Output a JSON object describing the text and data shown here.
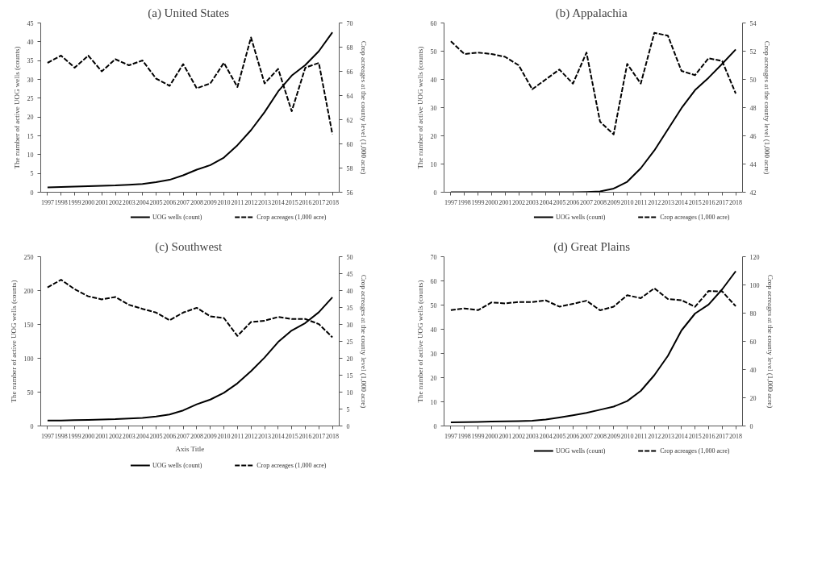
{
  "chart_data": [
    {
      "type": "line",
      "title": "(a)  United States",
      "categories": [
        "1997",
        "1998",
        "1999",
        "2000",
        "2001",
        "2002",
        "2003",
        "2004",
        "2005",
        "2006",
        "2007",
        "2008",
        "2009",
        "2010",
        "2011",
        "2012",
        "2013",
        "2014",
        "2015",
        "2016",
        "2017",
        "2018"
      ],
      "ylabel": "The number of active UOG wells (counts)",
      "y2label": "Crop acreages at the county level (1,000 acre)",
      "ylim": [
        0,
        45
      ],
      "yticks": [
        0,
        5,
        10,
        15,
        20,
        25,
        30,
        35,
        40,
        45
      ],
      "y2lim": [
        56,
        70
      ],
      "y2ticks": [
        56,
        58,
        60,
        62,
        64,
        66,
        68,
        70
      ],
      "legend": "bottom",
      "series": [
        {
          "name": "UOG wells (count)",
          "color": "#000000",
          "line_style": "solid",
          "values": [
            1.3,
            1.4,
            1.5,
            1.6,
            1.7,
            1.8,
            2.0,
            2.2,
            2.7,
            3.3,
            4.5,
            6.0,
            7.2,
            9.2,
            12.5,
            16.5,
            21.3,
            26.8,
            31.0,
            33.8,
            37.5,
            42.5
          ]
        },
        {
          "name": "Crop acreages (1,000 acre)",
          "color": "#000000",
          "line_style": "dashed",
          "axis": "y2",
          "values": [
            66.7,
            67.3,
            66.3,
            67.3,
            66.0,
            67.0,
            66.5,
            66.9,
            65.4,
            64.8,
            66.6,
            64.6,
            65.0,
            66.7,
            64.7,
            68.8,
            65.0,
            66.2,
            62.7,
            66.3,
            66.7,
            60.8
          ]
        }
      ]
    },
    {
      "type": "line",
      "title": "(b)  Appalachia",
      "categories": [
        "1997",
        "1998",
        "1999",
        "2000",
        "2001",
        "2002",
        "2003",
        "2004",
        "2005",
        "2006",
        "2007",
        "2008",
        "2009",
        "2010",
        "2011",
        "2012",
        "2013",
        "2014",
        "2015",
        "2016",
        "2017",
        "2018"
      ],
      "ylabel": "The number of active UOG wells (counts)",
      "y2label": "Crop acreages at the county level (1,000 acre)",
      "ylim": [
        0,
        60
      ],
      "yticks": [
        0,
        10,
        20,
        30,
        40,
        50,
        60
      ],
      "y2lim": [
        42,
        54
      ],
      "y2ticks": [
        42,
        44,
        46,
        48,
        50,
        52,
        54
      ],
      "legend": "bottom",
      "series": [
        {
          "name": "UOG wells (count)",
          "color": "#000000",
          "line_style": "solid",
          "values": [
            0,
            0,
            0,
            0,
            0,
            0,
            0,
            0,
            0,
            0,
            0.1,
            0.3,
            1.3,
            3.7,
            8.5,
            14.8,
            22.3,
            29.8,
            36.2,
            40.6,
            45.5,
            50.6
          ]
        },
        {
          "name": "Crop acreages (1,000 acre)",
          "color": "#000000",
          "line_style": "dashed",
          "axis": "y2",
          "values": [
            52.7,
            51.8,
            51.9,
            51.8,
            51.6,
            51.0,
            49.3,
            50.0,
            50.7,
            49.7,
            51.9,
            47.0,
            46.1,
            51.1,
            49.7,
            53.3,
            53.1,
            50.6,
            50.3,
            51.5,
            51.3,
            49.0
          ]
        }
      ]
    },
    {
      "type": "line",
      "title": "(c)  Southwest",
      "categories": [
        "1997",
        "1998",
        "1999",
        "2000",
        "2001",
        "2002",
        "2003",
        "2004",
        "2005",
        "2006",
        "2007",
        "2008",
        "2009",
        "2010",
        "2011",
        "2012",
        "2013",
        "2014",
        "2015",
        "2016",
        "2017",
        "2018"
      ],
      "xlabel": "Axis Title",
      "ylabel": "The number of active UOG wells (counts)",
      "y2label": "Crop acreages at the county level (1,000 acre)",
      "ylim": [
        0,
        250
      ],
      "yticks": [
        0,
        50,
        100,
        150,
        200,
        250
      ],
      "y2lim": [
        0,
        50
      ],
      "y2ticks": [
        0,
        5,
        10,
        15,
        20,
        25,
        30,
        35,
        40,
        45,
        50
      ],
      "legend": "bottom",
      "series": [
        {
          "name": "UOG wells (count)",
          "color": "#000000",
          "line_style": "solid",
          "values": [
            8,
            8,
            8.5,
            9,
            9.5,
            10,
            11,
            12,
            14,
            17,
            23,
            32,
            39,
            49,
            63,
            81,
            101,
            124,
            141,
            152,
            168,
            190
          ]
        },
        {
          "name": "Crop acreages (1,000 acre)",
          "color": "#000000",
          "line_style": "dashed",
          "axis": "y2",
          "values": [
            40.9,
            43.2,
            40.4,
            38.3,
            37.4,
            38.1,
            35.8,
            34.6,
            33.5,
            31.2,
            33.5,
            34.9,
            32.4,
            31.9,
            26.6,
            30.7,
            31.1,
            32.2,
            31.6,
            31.6,
            30.1,
            26.2
          ]
        }
      ]
    },
    {
      "type": "line",
      "title": "(d)  Great Plains",
      "categories": [
        "1997",
        "1998",
        "1999",
        "2000",
        "2001",
        "2002",
        "2003",
        "2004",
        "2005",
        "2006",
        "2007",
        "2008",
        "2009",
        "2010",
        "2011",
        "2012",
        "2013",
        "2014",
        "2015",
        "2016",
        "2017",
        "2018"
      ],
      "ylabel": "The number of active UOG wells (counts)",
      "y2label": "Crop acreages at the county level (1,000 acre)",
      "ylim": [
        0,
        70
      ],
      "yticks": [
        0,
        10,
        20,
        30,
        40,
        50,
        60,
        70
      ],
      "y2lim": [
        0,
        120
      ],
      "y2ticks": [
        0,
        20,
        40,
        60,
        80,
        100,
        120
      ],
      "legend": "bottom",
      "series": [
        {
          "name": "UOG wells (count)",
          "color": "#000000",
          "line_style": "solid",
          "values": [
            1.5,
            1.6,
            1.7,
            1.8,
            1.9,
            2.0,
            2.2,
            2.7,
            3.5,
            4.4,
            5.4,
            6.7,
            8.0,
            10.3,
            14.5,
            21.0,
            29,
            39.5,
            46.5,
            50.2,
            56.5,
            64
          ]
        },
        {
          "name": "Crop acreages (1,000 acre)",
          "color": "#000000",
          "line_style": "dashed",
          "axis": "y2",
          "values": [
            82.2,
            83.3,
            82.1,
            87.6,
            86.9,
            87.9,
            87.8,
            89.0,
            84.6,
            86.6,
            88.8,
            82.0,
            84.6,
            92.7,
            90.6,
            97.6,
            90.0,
            89.2,
            84.5,
            95.7,
            95.4,
            84.9
          ]
        }
      ]
    }
  ]
}
